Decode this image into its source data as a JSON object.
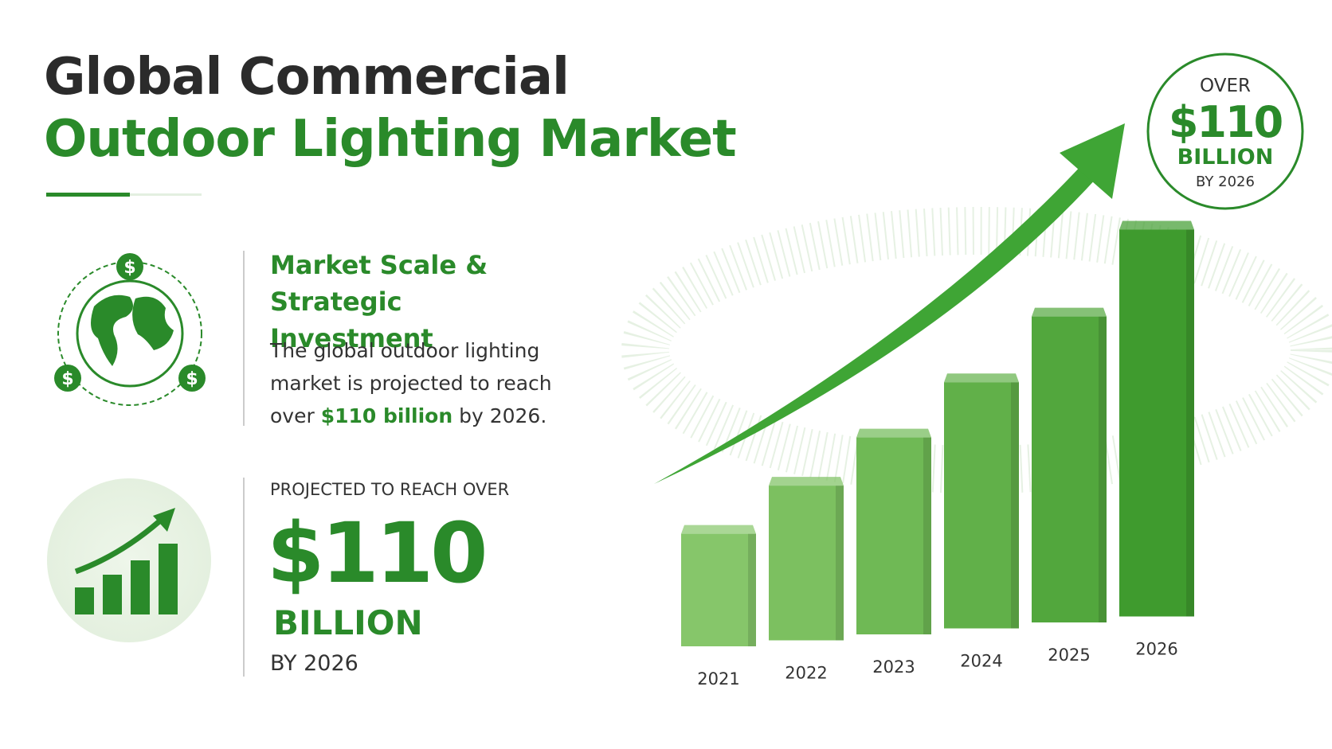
{
  "header": {
    "title_line1": "Global Commercial",
    "title_line2": "Outdoor Lighting Market"
  },
  "section1": {
    "heading": "Market Scale & Strategic Investment",
    "body": [
      "The global outdoor lighting market is projected to reach over ",
      "$110 billion",
      " by 2026."
    ]
  },
  "section2": {
    "label": "PROJECTED TO REACH OVER",
    "amount": "$110",
    "unit": "BILLION",
    "year": "BY 2026"
  },
  "badge": {
    "line1": "OVER",
    "amount": "$110",
    "unit": "BILLION",
    "year": "BY 2026"
  },
  "chart_data": {
    "type": "bar",
    "categories": [
      "2021",
      "2022",
      "2023",
      "2024",
      "2025",
      "2026"
    ],
    "values": [
      32,
      44,
      56,
      70,
      87,
      110
    ],
    "colors": [
      "#86c66a",
      "#7cc060",
      "#6fb955",
      "#61b049",
      "#52a73d",
      "#3f9b2e"
    ]
  }
}
